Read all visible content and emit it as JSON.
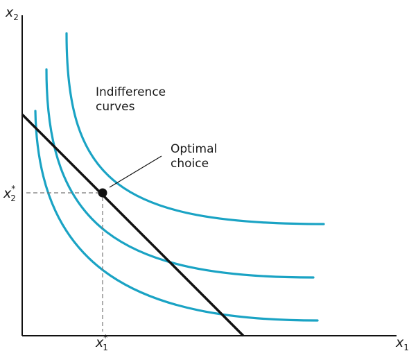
{
  "diagram": {
    "x_axis_label": "x",
    "x_axis_label_sub": "1",
    "y_axis_label": "x",
    "y_axis_label_sub": "2",
    "x_star_label": "x",
    "x_star_sub": "1",
    "x_star_sup": "*",
    "y_star_label": "x",
    "y_star_sub": "2",
    "y_star_sup": "*",
    "indifference_label_line1": "Indifference",
    "indifference_label_line2": "curves",
    "optimal_label_line1": "Optimal",
    "optimal_label_line2": "choice",
    "colors": {
      "curve": "#1aa3c4",
      "budget_line": "#111111",
      "axes": "#111111",
      "guide": "#777777",
      "point": "#111111"
    }
  }
}
